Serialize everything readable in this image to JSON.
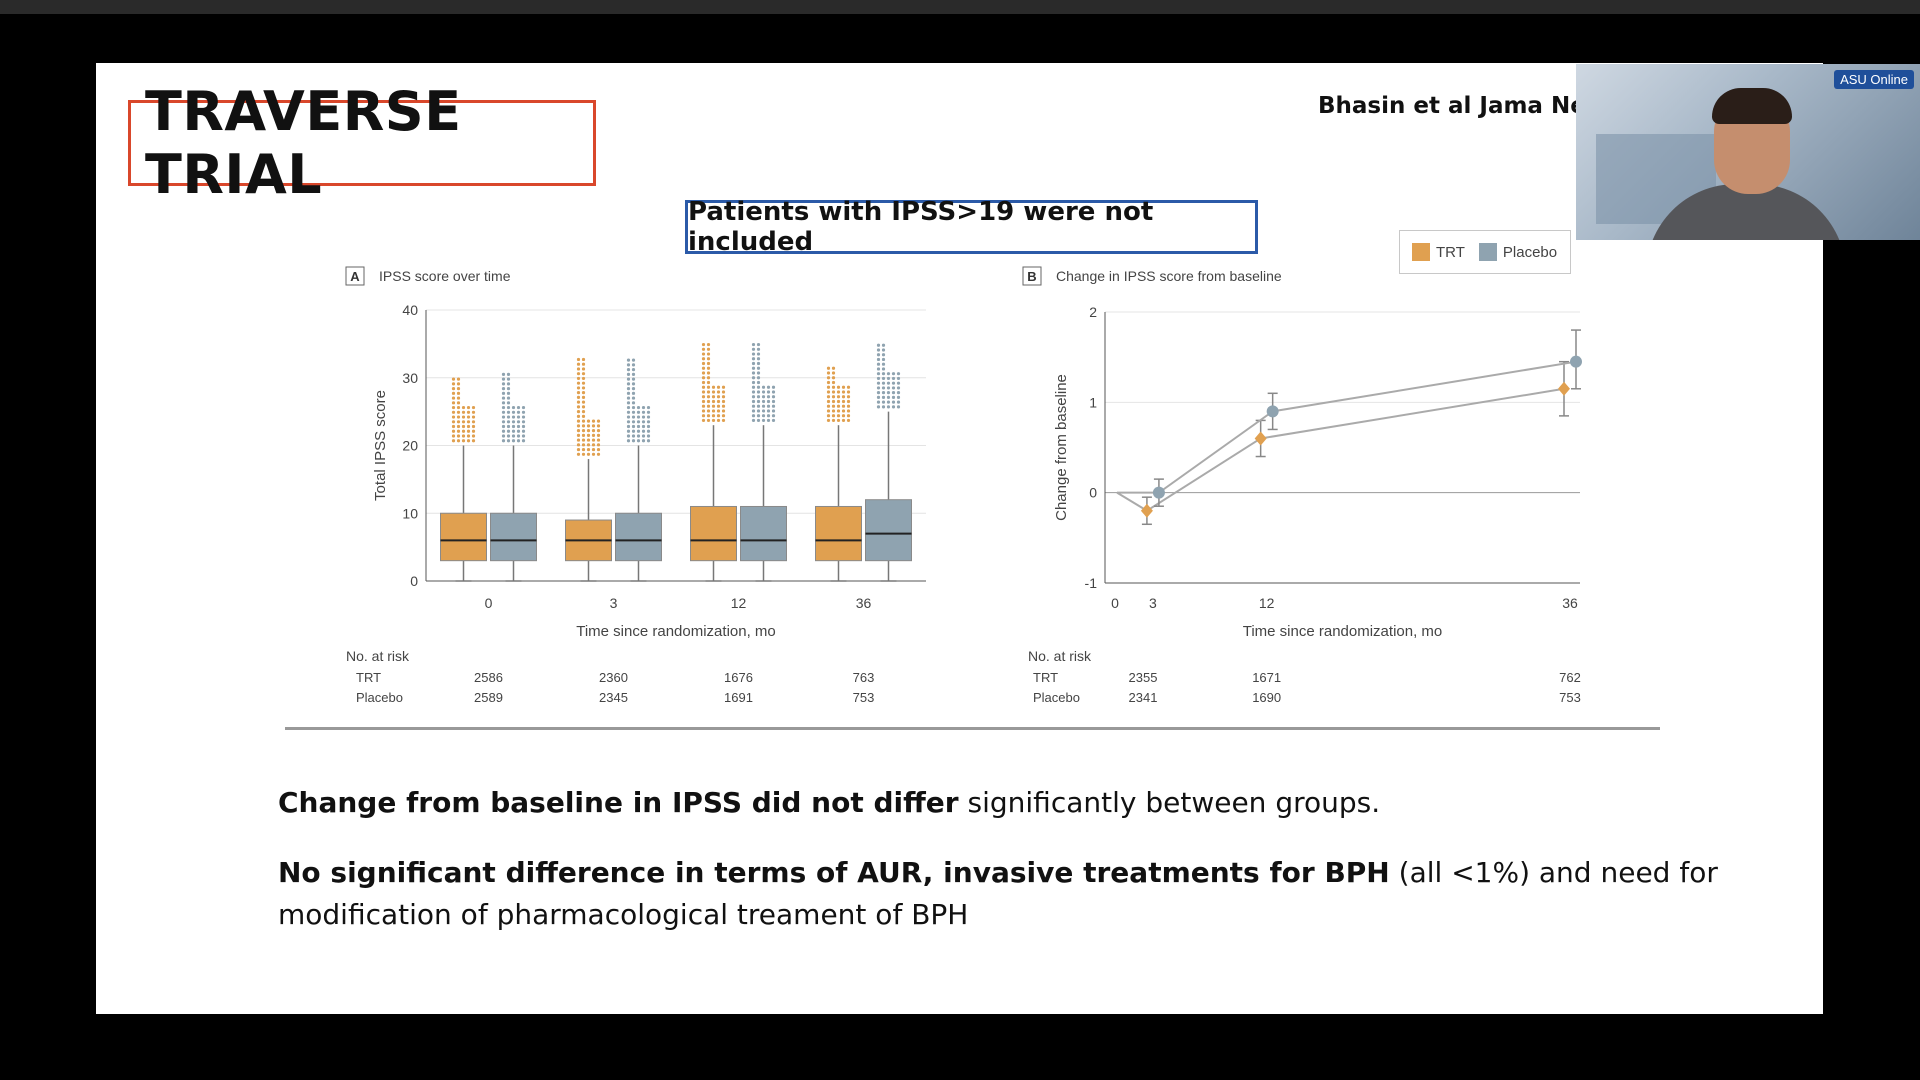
{
  "slide": {
    "title": "TRAVERSE TRIAL",
    "citation": "Bhasin et al Jama Net",
    "note": "Patients with IPSS>19 were not included",
    "body": {
      "line1_bold": "Change from baseline in IPSS did not differ",
      "line1_rest": " significantly between groups.",
      "line2_bold": "No significant difference in terms of AUR, invasive treatments for BPH",
      "line2_rest": " (all <1%) and need for",
      "line3": "modification of pharmacological treament of BPH"
    }
  },
  "legend": {
    "trt_label": "TRT",
    "placebo_label": "Placebo"
  },
  "colors": {
    "trt": "#e0a050",
    "placebo": "#8fa3b0",
    "title_border": "#d9472b",
    "note_border": "#2b5aa8"
  },
  "webcam": {
    "badge": "ASU Online"
  },
  "chart_data": [
    {
      "type": "box",
      "panel_label": "A",
      "title": "IPSS score over time",
      "xlabel": "Time since randomization, mo",
      "ylabel": "Total IPSS score",
      "ylim": [
        0,
        40
      ],
      "yticks": [
        "0",
        "10",
        "20",
        "30",
        "40"
      ],
      "categories": [
        "0",
        "3",
        "12",
        "36"
      ],
      "series": [
        {
          "name": "TRT",
          "boxes": [
            {
              "q1": 3,
              "median": 6,
              "q3": 10,
              "whisker_low": 0,
              "whisker_high": 20
            },
            {
              "q1": 3,
              "median": 6,
              "q3": 9,
              "whisker_low": 0,
              "whisker_high": 18
            },
            {
              "q1": 3,
              "median": 6,
              "q3": 11,
              "whisker_low": 0,
              "whisker_high": 23
            },
            {
              "q1": 3,
              "median": 6,
              "q3": 11,
              "whisker_low": 0,
              "whisker_high": 23
            }
          ]
        },
        {
          "name": "Placebo",
          "boxes": [
            {
              "q1": 3,
              "median": 6,
              "q3": 10,
              "whisker_low": 0,
              "whisker_high": 20
            },
            {
              "q1": 3,
              "median": 6,
              "q3": 10,
              "whisker_low": 0,
              "whisker_high": 20
            },
            {
              "q1": 3,
              "median": 6,
              "q3": 11,
              "whisker_low": 0,
              "whisker_high": 23
            },
            {
              "q1": 3,
              "median": 7,
              "q3": 12,
              "whisker_low": 0,
              "whisker_high": 25
            }
          ]
        }
      ],
      "at_risk": {
        "header": "No. at risk",
        "rows": [
          {
            "label": "TRT",
            "values": [
              "2586",
              "2360",
              "1676",
              "763"
            ]
          },
          {
            "label": "Placebo",
            "values": [
              "2589",
              "2345",
              "1691",
              "753"
            ]
          }
        ]
      }
    },
    {
      "type": "line",
      "panel_label": "B",
      "title": "Change in IPSS score from baseline",
      "xlabel": "Time since randomization, mo",
      "ylabel": "Change from baseline",
      "ylim": [
        -1,
        2
      ],
      "yticks": [
        "-1",
        "0",
        "1",
        "2"
      ],
      "xticks": [
        "0",
        "3",
        "12",
        "36"
      ],
      "series": [
        {
          "name": "TRT",
          "x": [
            3,
            12,
            36
          ],
          "y": [
            -0.2,
            0.6,
            1.15
          ],
          "ci_low": [
            -0.35,
            0.4,
            0.85
          ],
          "ci_high": [
            -0.05,
            0.8,
            1.45
          ]
        },
        {
          "name": "Placebo",
          "x": [
            3,
            12,
            36
          ],
          "y": [
            0.0,
            0.9,
            1.45
          ],
          "ci_low": [
            -0.15,
            0.7,
            1.15
          ],
          "ci_high": [
            0.15,
            1.1,
            1.8
          ]
        }
      ],
      "at_risk": {
        "header": "No. at risk",
        "rows": [
          {
            "label": "TRT",
            "values": [
              "2355",
              "1671",
              "762"
            ]
          },
          {
            "label": "Placebo",
            "values": [
              "2341",
              "1690",
              "753"
            ]
          }
        ]
      }
    }
  ]
}
